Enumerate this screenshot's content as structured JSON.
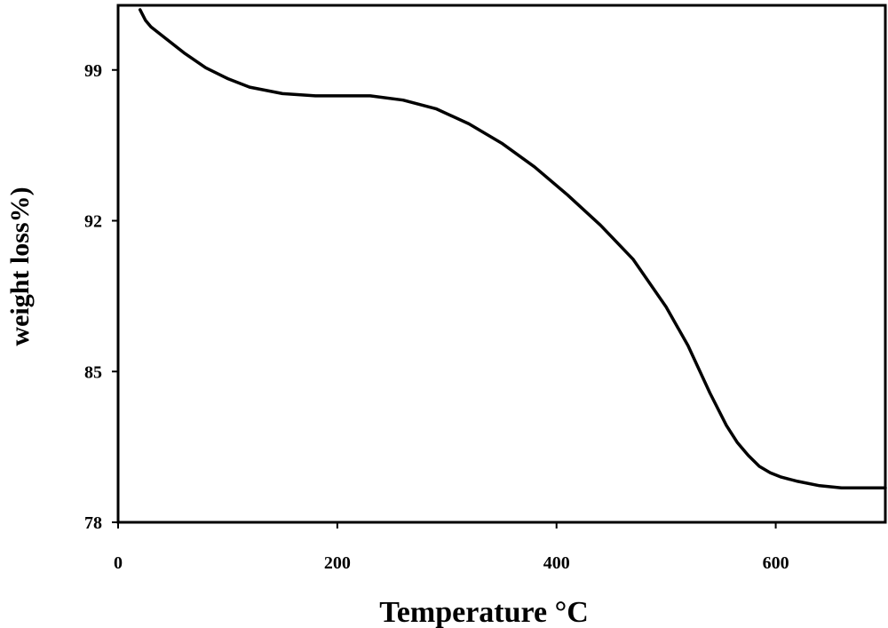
{
  "chart_data": {
    "type": "line",
    "title": "",
    "xlabel": "Temperature °C",
    "ylabel": "weight loss%)",
    "xlim": [
      0,
      700
    ],
    "ylim": [
      78,
      102
    ],
    "xticks": [
      0,
      200,
      400,
      600
    ],
    "yticks": [
      78,
      85,
      92,
      99
    ],
    "grid": false,
    "legend": "none",
    "line_color": "#000000",
    "series": [
      {
        "x": [
          20,
          25,
          30,
          40,
          60,
          80,
          100,
          120,
          150,
          180,
          200,
          230,
          260,
          290,
          320,
          350,
          380,
          410,
          440,
          470,
          500,
          520,
          540,
          555,
          565,
          575,
          585,
          595,
          605,
          620,
          640,
          660,
          680,
          700
        ],
        "y": [
          101.8,
          101.3,
          101.0,
          100.6,
          99.8,
          99.1,
          98.6,
          98.2,
          97.9,
          97.8,
          97.8,
          97.8,
          97.6,
          97.2,
          96.5,
          95.6,
          94.5,
          93.2,
          91.8,
          90.2,
          88.0,
          86.2,
          84.0,
          82.5,
          81.7,
          81.1,
          80.6,
          80.3,
          80.1,
          79.9,
          79.7,
          79.6,
          79.6,
          79.6
        ]
      }
    ]
  }
}
